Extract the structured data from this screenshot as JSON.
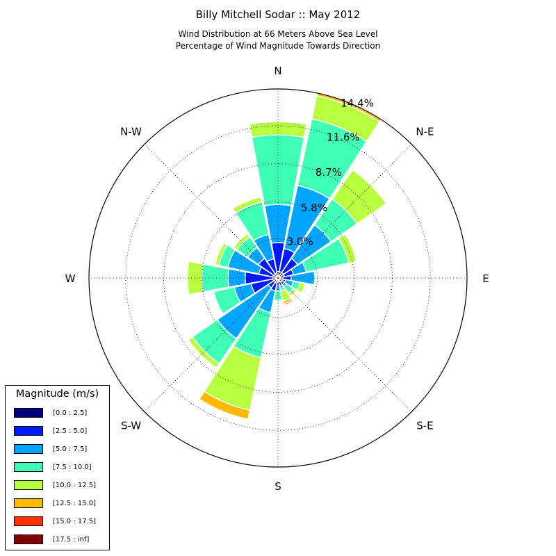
{
  "title": "Billy Mitchell Sodar :: May 2012",
  "subtitle_line1": "Wind Distribution at 66 Meters Above Sea Level",
  "subtitle_line2": "Percentage of Wind Magnitude Towards Direction",
  "legend": {
    "title": "Magnitude (m/s)",
    "items": [
      {
        "label": "[0.0 : 2.5]",
        "color": "#00007f"
      },
      {
        "label": "[2.5 : 5.0]",
        "color": "#0019ff"
      },
      {
        "label": "[5.0 : 7.5]",
        "color": "#00a5ff"
      },
      {
        "label": "[7.5 : 10.0]",
        "color": "#3fffb7"
      },
      {
        "label": "[10.0 : 12.5]",
        "color": "#b7ff3f"
      },
      {
        "label": "[12.5 : 15.0]",
        "color": "#ffb900"
      },
      {
        "label": "[15.0 : 17.5]",
        "color": "#ff3000"
      },
      {
        "label": "[17.5 : inf]",
        "color": "#7f0000"
      }
    ]
  },
  "chart_data": {
    "type": "windrose",
    "directions": [
      "N",
      "NNE",
      "NE",
      "ENE",
      "E",
      "ESE",
      "SE",
      "SSE",
      "S",
      "SSW",
      "SW",
      "WSW",
      "W",
      "WNW",
      "NW",
      "NNW"
    ],
    "direction_labels": [
      "N",
      "N-E",
      "E",
      "S-E",
      "S",
      "S-W",
      "W",
      "N-W"
    ],
    "radial_ticks": [
      "3.0%",
      "5.8%",
      "8.7%",
      "11.6%",
      "14.4%"
    ],
    "radial_tick_values": [
      3.0,
      5.8,
      8.7,
      11.6,
      14.4
    ],
    "rmax": 14.4,
    "units": "percent",
    "bins": [
      "[0.0 : 2.5]",
      "[2.5 : 5.0]",
      "[5.0 : 7.5]",
      "[7.5 : 10.0]",
      "[10.0 : 12.5]",
      "[12.5 : 15.0]",
      "[15.0 : 17.5]",
      "[17.5 : inf]"
    ],
    "cumulative": [
      [
        0.5,
        2.7,
        5.6,
        10.9,
        11.9,
        11.9,
        11.9,
        11.9
      ],
      [
        0.5,
        2.3,
        7.2,
        12.4,
        14.2,
        14.4,
        14.4,
        14.4
      ],
      [
        0.5,
        1.8,
        4.9,
        7.3,
        10.0,
        10.0,
        10.0,
        10.0
      ],
      [
        0.5,
        1.2,
        2.2,
        5.5,
        6.1,
        6.1,
        6.1,
        6.1
      ],
      [
        0.4,
        1.0,
        2.8,
        2.9,
        2.9,
        2.9,
        2.9,
        2.9
      ],
      [
        0.4,
        0.6,
        1.2,
        1.7,
        2.1,
        2.1,
        2.1,
        2.1
      ],
      [
        0.4,
        0.6,
        0.8,
        1.4,
        1.7,
        1.7,
        1.7,
        1.7
      ],
      [
        0.3,
        0.6,
        0.8,
        1.0,
        1.8,
        2.0,
        2.1,
        2.1
      ],
      [
        0.3,
        0.6,
        1.0,
        1.7,
        1.75,
        1.75,
        1.75,
        1.75
      ],
      [
        0.4,
        1.0,
        2.7,
        6.2,
        10.3,
        11.0,
        11.0,
        11.0
      ],
      [
        0.4,
        0.9,
        5.6,
        7.9,
        8.3,
        8.3,
        8.3,
        8.3
      ],
      [
        0.4,
        2.1,
        3.4,
        5.0,
        5.0,
        5.0,
        5.0,
        5.0
      ],
      [
        0.4,
        2.5,
        3.8,
        5.8,
        6.9,
        6.9,
        6.9,
        6.9
      ],
      [
        0.4,
        1.5,
        3.9,
        4.6,
        4.9,
        4.9,
        4.9,
        4.9
      ],
      [
        0.3,
        1.8,
        2.8,
        3.8,
        4.1,
        4.1,
        4.1,
        4.1
      ],
      [
        0.4,
        1.5,
        3.4,
        5.9,
        6.3,
        6.3,
        6.3,
        6.3
      ]
    ]
  }
}
